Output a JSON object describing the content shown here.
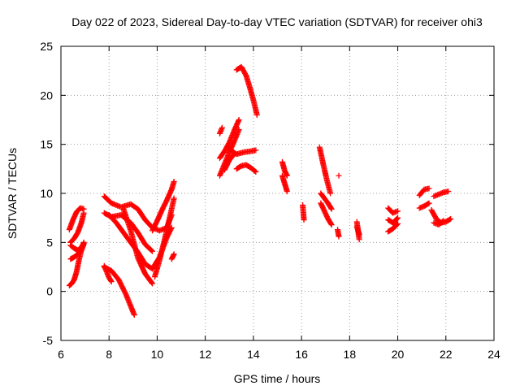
{
  "chart_data": {
    "type": "scatter",
    "title": "Day 022 of 2023, Sidereal Day-to-day VTEC variation (SDTVAR) for receiver ohi3",
    "xlabel": "GPS time / hours",
    "ylabel": "SDTVAR / TECUs",
    "xlim": [
      6,
      24
    ],
    "ylim": [
      -5,
      25
    ],
    "xticks": [
      6,
      8,
      10,
      12,
      14,
      16,
      18,
      20,
      22,
      24
    ],
    "yticks": [
      -5,
      0,
      5,
      10,
      15,
      20,
      25
    ],
    "grid": true,
    "marker": "+",
    "color": "#ff0000",
    "arcs": [
      {
        "x": [
          6.35,
          6.45,
          6.55,
          6.65,
          6.75,
          6.85,
          6.95
        ],
        "y": [
          0.6,
          0.8,
          1.2,
          2.0,
          3.2,
          4.2,
          5.0
        ]
      },
      {
        "x": [
          6.35,
          6.5,
          6.65,
          6.8,
          6.95
        ],
        "y": [
          6.3,
          7.3,
          8.1,
          8.5,
          8.4
        ]
      },
      {
        "x": [
          6.4,
          6.55,
          6.7,
          6.85,
          6.95
        ],
        "y": [
          5.0,
          5.4,
          6.0,
          7.0,
          8.0
        ]
      },
      {
        "x": [
          6.4,
          6.55,
          6.7,
          6.85,
          6.95
        ],
        "y": [
          3.3,
          3.5,
          3.8,
          4.2,
          4.8
        ]
      },
      {
        "x": [
          6.4,
          6.55,
          6.7,
          6.85,
          6.95
        ],
        "y": [
          4.7,
          4.4,
          4.2,
          4.5,
          4.9
        ]
      },
      {
        "x": [
          7.8,
          7.9,
          8.0,
          8.1
        ],
        "y": [
          2.6,
          2.0,
          1.4,
          1.0
        ]
      },
      {
        "x": [
          7.8,
          8.1,
          8.4,
          8.7,
          8.9,
          9.05
        ],
        "y": [
          2.5,
          2.1,
          1.2,
          -0.3,
          -1.5,
          -2.4
        ]
      },
      {
        "x": [
          7.8,
          8.1,
          8.5,
          8.9,
          9.2,
          9.5,
          9.8,
          10.1,
          10.4,
          10.6
        ],
        "y": [
          9.7,
          9.0,
          8.6,
          8.9,
          8.4,
          7.3,
          6.5,
          6.2,
          6.5,
          7.8
        ]
      },
      {
        "x": [
          7.8,
          8.1,
          8.5,
          8.9,
          9.2,
          9.5,
          9.8
        ],
        "y": [
          8.0,
          7.6,
          7.8,
          7.0,
          6.0,
          4.8,
          4.1
        ]
      },
      {
        "x": [
          8.0,
          8.3,
          8.6,
          8.9,
          9.2,
          9.5,
          9.8,
          10.1,
          10.4,
          10.6
        ],
        "y": [
          7.8,
          7.0,
          6.0,
          5.0,
          4.0,
          2.8,
          2.3,
          3.5,
          5.5,
          6.5
        ]
      },
      {
        "x": [
          8.6,
          8.9,
          9.2,
          9.5,
          9.8
        ],
        "y": [
          8.4,
          6.2,
          3.4,
          1.8,
          0.8
        ]
      },
      {
        "x": [
          9.8,
          10.0,
          10.2,
          10.4,
          10.6,
          10.7
        ],
        "y": [
          6.2,
          7.2,
          8.3,
          9.3,
          10.4,
          11.2
        ]
      },
      {
        "x": [
          9.9,
          10.1,
          10.3,
          10.5,
          10.7
        ],
        "y": [
          1.5,
          3.2,
          5.2,
          7.3,
          9.5
        ]
      },
      {
        "x": [
          10.6,
          10.7
        ],
        "y": [
          3.3,
          3.8
        ]
      },
      {
        "x": [
          12.6,
          12.7
        ],
        "y": [
          16.1,
          16.7
        ]
      },
      {
        "x": [
          12.6,
          12.8,
          13.0,
          13.2,
          13.4
        ],
        "y": [
          11.8,
          13.0,
          14.2,
          15.3,
          16.5
        ]
      },
      {
        "x": [
          12.6,
          12.8,
          13.0,
          13.2,
          13.4
        ],
        "y": [
          13.6,
          14.3,
          15.2,
          16.4,
          17.5
        ]
      },
      {
        "x": [
          12.8,
          13.0,
          13.2
        ],
        "y": [
          12.4,
          13.4,
          14.0
        ]
      },
      {
        "x": [
          13.0,
          13.3,
          13.6,
          13.9,
          14.1
        ],
        "y": [
          14.5,
          14.0,
          14.2,
          14.3,
          14.4
        ]
      },
      {
        "x": [
          13.3,
          13.5,
          13.7,
          13.9,
          14.1
        ],
        "y": [
          12.5,
          12.8,
          12.9,
          12.6,
          12.2
        ]
      },
      {
        "x": [
          13.3,
          13.5,
          13.7,
          13.85,
          14.0,
          14.15
        ],
        "y": [
          22.6,
          22.9,
          22.0,
          20.8,
          19.5,
          18.0
        ]
      },
      {
        "x": [
          15.2,
          15.3,
          15.4
        ],
        "y": [
          13.2,
          12.3,
          11.8
        ]
      },
      {
        "x": [
          15.2,
          15.3,
          15.4
        ],
        "y": [
          11.8,
          11.0,
          10.2
        ]
      },
      {
        "x": [
          16.05,
          16.1
        ],
        "y": [
          8.8,
          7.3
        ]
      },
      {
        "x": [
          16.75,
          16.9,
          17.05,
          17.2
        ],
        "y": [
          14.7,
          13.0,
          11.4,
          10.0
        ]
      },
      {
        "x": [
          16.8,
          16.95,
          17.1,
          17.25
        ],
        "y": [
          10.0,
          9.5,
          9.0,
          8.4
        ]
      },
      {
        "x": [
          16.8,
          16.95,
          17.1,
          17.25
        ],
        "y": [
          9.0,
          8.2,
          7.4,
          6.8
        ]
      },
      {
        "x": [
          17.55
        ],
        "y": [
          11.8
        ]
      },
      {
        "x": [
          17.5,
          17.55
        ],
        "y": [
          6.3,
          5.6
        ]
      },
      {
        "x": [
          18.3,
          18.4
        ],
        "y": [
          7.1,
          5.3
        ]
      },
      {
        "x": [
          18.3,
          18.4
        ],
        "y": [
          6.6,
          5.8
        ]
      },
      {
        "x": [
          19.6,
          19.8,
          20.0
        ],
        "y": [
          8.5,
          8.0,
          8.2
        ]
      },
      {
        "x": [
          19.6,
          19.8,
          20.0
        ],
        "y": [
          7.3,
          7.0,
          7.5
        ]
      },
      {
        "x": [
          19.6,
          19.8,
          20.0
        ],
        "y": [
          6.1,
          6.4,
          6.9
        ]
      },
      {
        "x": [
          20.9,
          21.1,
          21.3
        ],
        "y": [
          9.8,
          10.4,
          10.5
        ]
      },
      {
        "x": [
          20.9,
          21.1,
          21.3
        ],
        "y": [
          8.5,
          8.7,
          9.0
        ]
      },
      {
        "x": [
          21.5,
          21.7,
          21.9,
          22.1
        ],
        "y": [
          9.7,
          9.9,
          10.1,
          10.2
        ]
      },
      {
        "x": [
          21.4,
          21.6,
          21.8,
          22.0,
          22.2
        ],
        "y": [
          8.3,
          7.4,
          7.0,
          7.1,
          7.4
        ]
      },
      {
        "x": [
          21.5,
          21.7,
          21.9
        ],
        "y": [
          7.0,
          6.8,
          7.2
        ]
      }
    ]
  }
}
